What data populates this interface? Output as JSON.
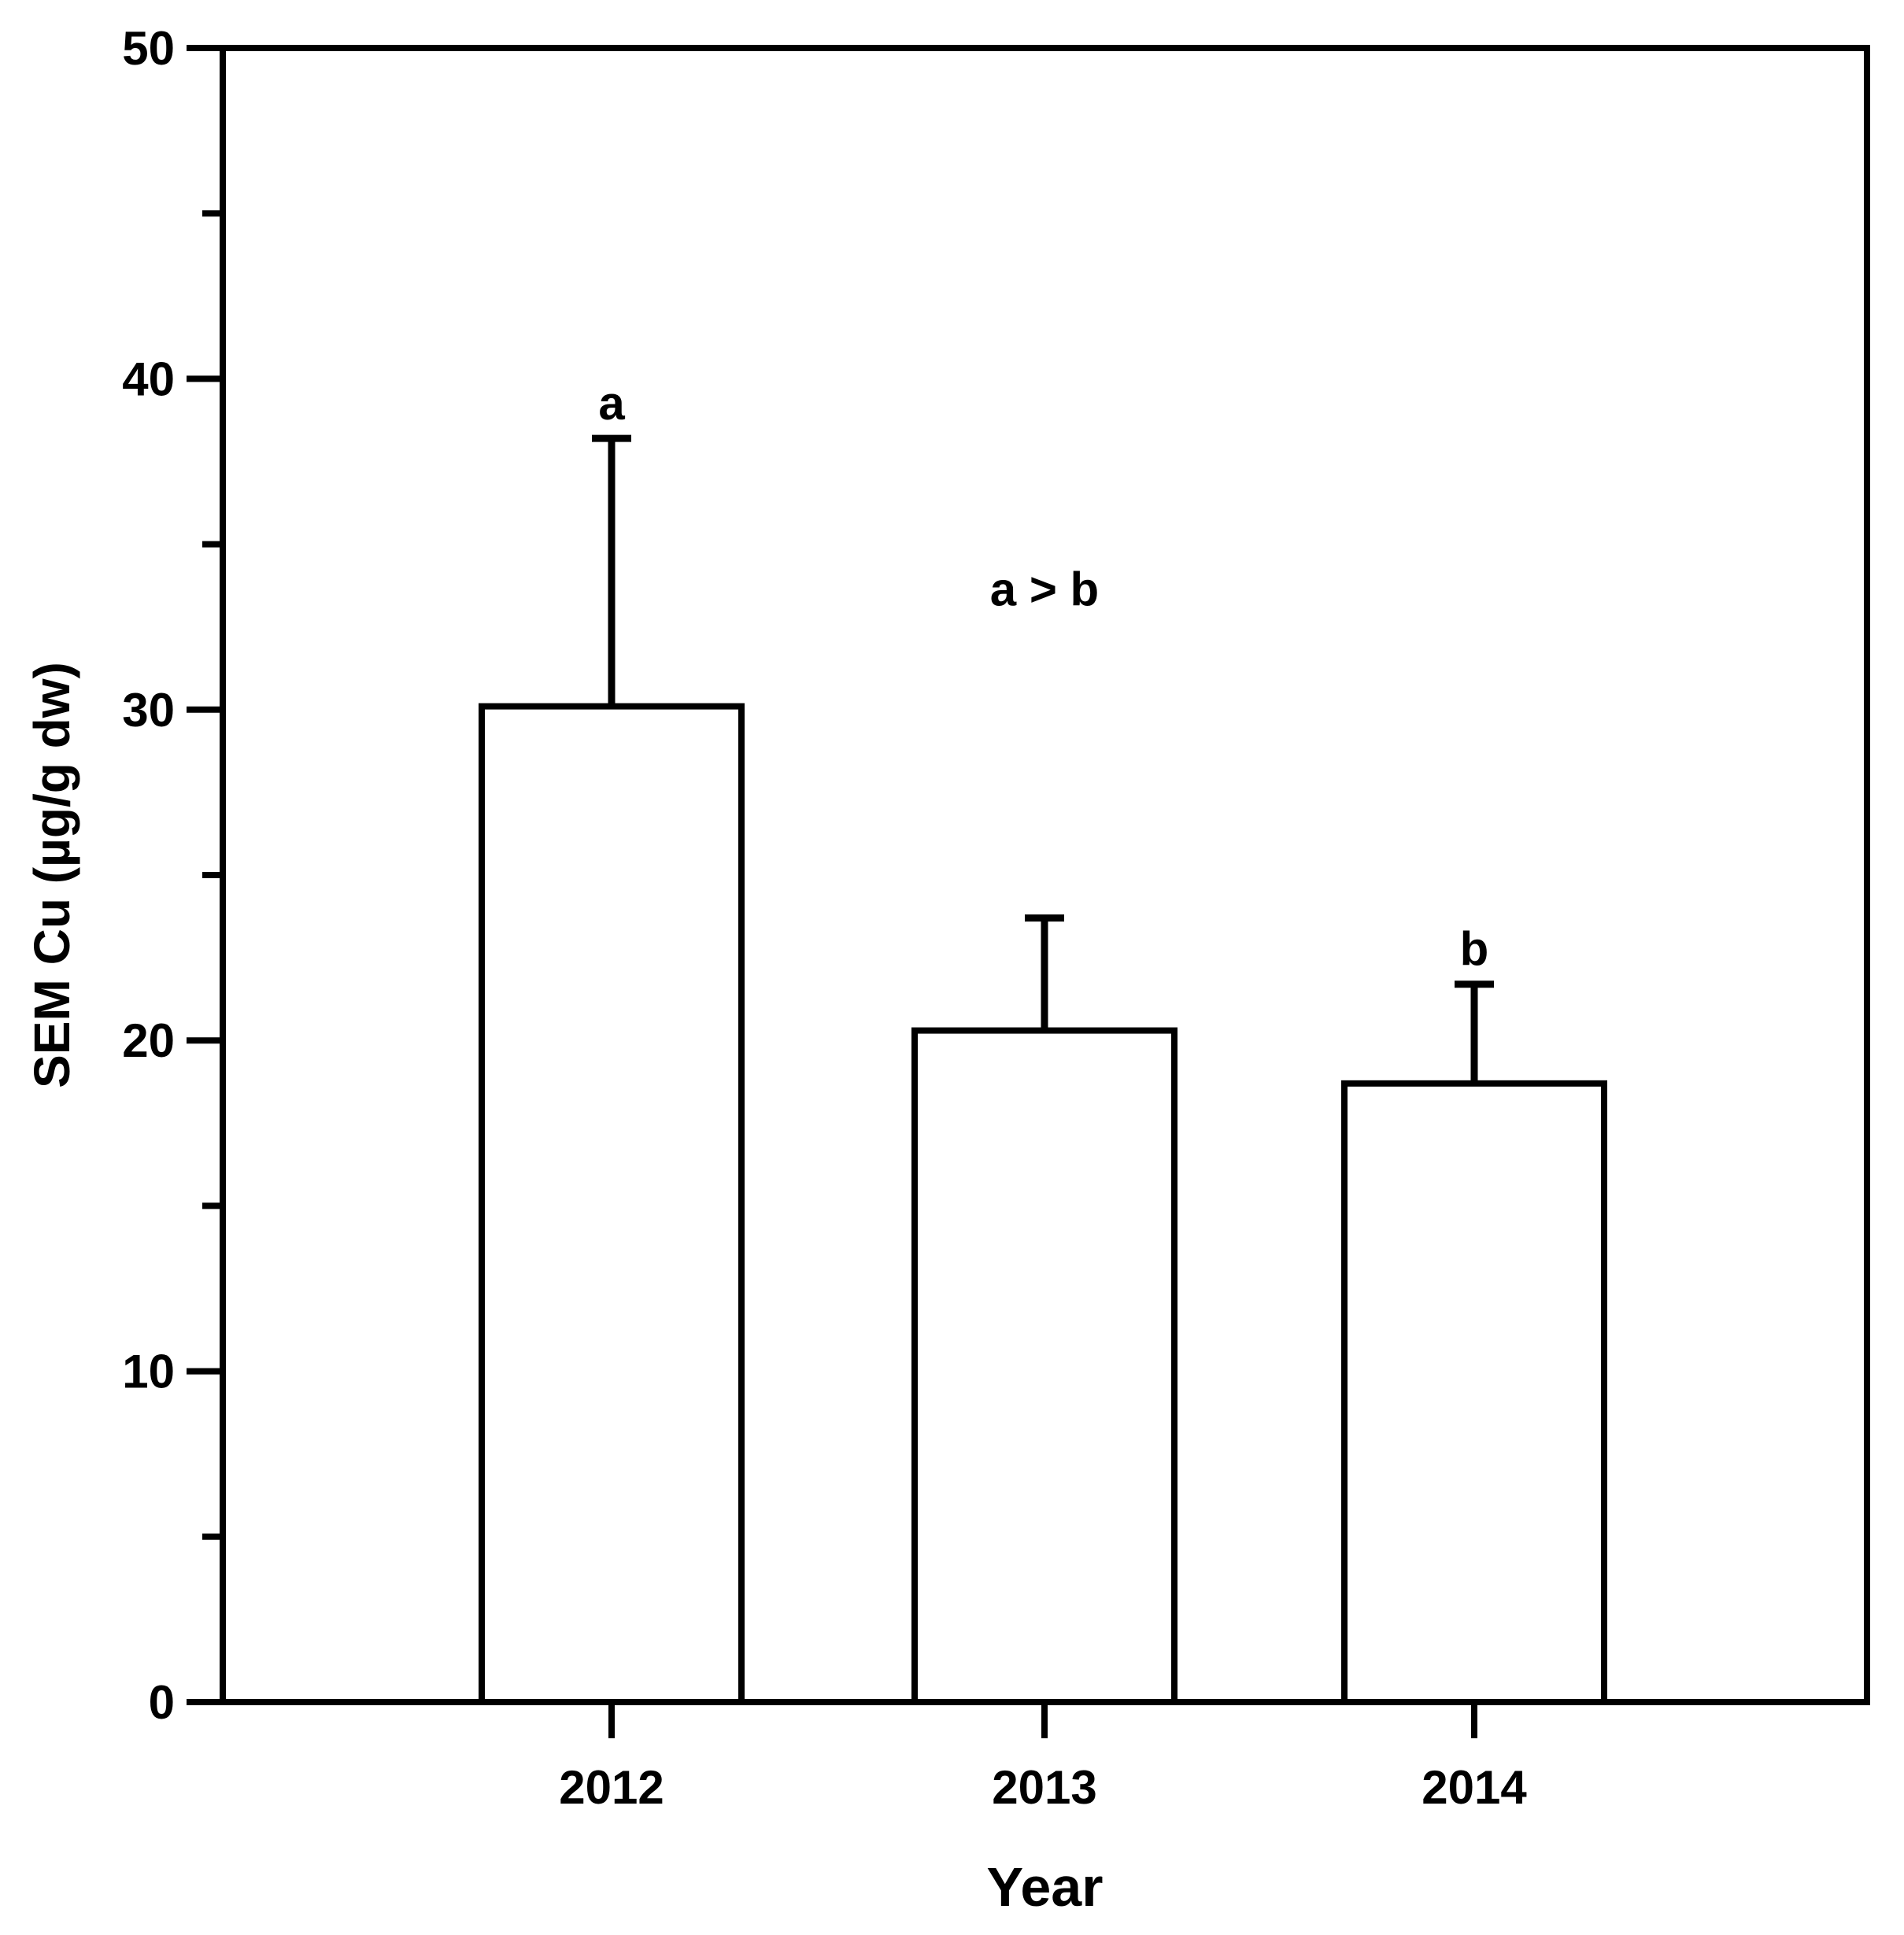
{
  "figure": {
    "background_color": "#ffffff",
    "ink_color": "#000000"
  },
  "chart_data": {
    "type": "bar",
    "title": "",
    "xlabel": "Year",
    "ylabel": "SEM Cu (µg/g dw)",
    "categories": [
      "2012",
      "2013",
      "2014"
    ],
    "series": [
      {
        "name": "SEM Cu",
        "values": [
          30.1,
          20.3,
          18.7
        ],
        "errors_plus": [
          8.1,
          3.4,
          3.0
        ]
      }
    ],
    "ylim": [
      0,
      50
    ],
    "y_major_ticks": [
      0,
      10,
      20,
      30,
      40,
      50
    ],
    "y_minor_ticks": [
      5,
      15,
      25,
      35,
      45
    ],
    "grid": false,
    "legend": false,
    "bar_fill": "#ffffff",
    "bar_stroke": "#000000",
    "error_bar_direction": "plus-only",
    "annotations": [
      {
        "text": "a",
        "attach": "error-cap",
        "category_index": 0
      },
      {
        "text": "b",
        "attach": "error-cap",
        "category_index": 2
      },
      {
        "text": "a > b",
        "attach": "free",
        "category_index": 1,
        "y_value": 33.7
      }
    ]
  }
}
